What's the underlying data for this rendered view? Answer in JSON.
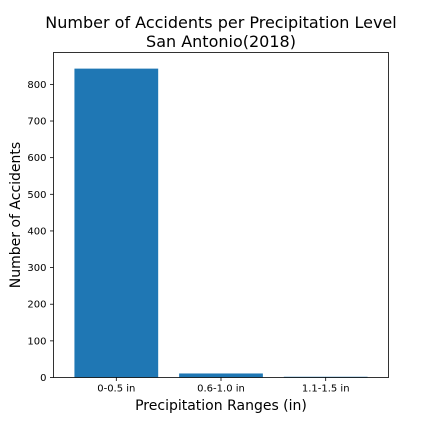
{
  "chart_data": {
    "type": "bar",
    "title": "Number of Accidents per Precipitation Level",
    "subtitle": "San Antonio(2018)",
    "xlabel": "Precipitation Ranges (in)",
    "ylabel": "Number of Accidents",
    "categories": [
      "0-0.5 in",
      "0.6-1.0 in",
      "1.1-1.5 in"
    ],
    "values": [
      843,
      11,
      2
    ],
    "ylim": [
      0,
      887
    ],
    "yticks": [
      0,
      100,
      200,
      300,
      400,
      500,
      600,
      700,
      800
    ],
    "bar_color": "#1f77b4",
    "grid": false,
    "legend": "none"
  }
}
